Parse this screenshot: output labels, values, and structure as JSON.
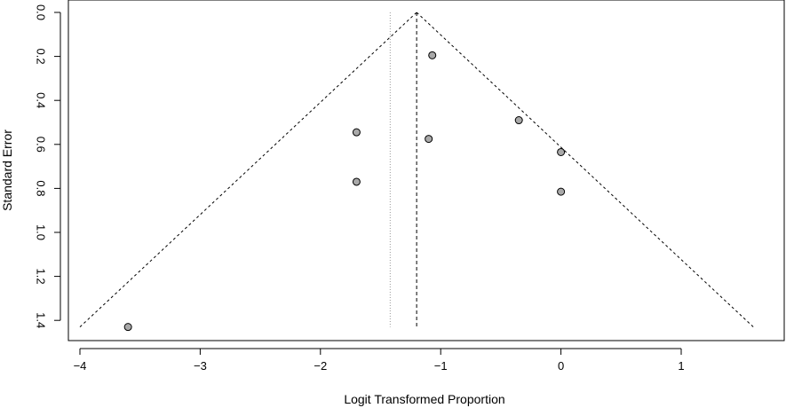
{
  "chart_data": {
    "type": "scatter",
    "subtype": "funnel-plot",
    "title": "",
    "xlabel": "Logit Transformed Proportion",
    "ylabel": "Standard Error",
    "xlim": [
      -4.1,
      1.8
    ],
    "ylim": [
      0.0,
      1.44
    ],
    "y_reversed": true,
    "x_ticks": [
      -4,
      -3,
      -2,
      -1,
      0,
      1
    ],
    "x_tick_labels": [
      "−4",
      "−3",
      "−2",
      "−1",
      "0",
      "1"
    ],
    "y_ticks": [
      0.0,
      0.2,
      0.4,
      0.6,
      0.8,
      1.0,
      1.2,
      1.4
    ],
    "y_tick_labels": [
      "0.0",
      "0.2",
      "0.4",
      "0.6",
      "0.8",
      "1.0",
      "1.2",
      "1.4"
    ],
    "grid": false,
    "legend": "none",
    "points": [
      {
        "x": -1.07,
        "y": 0.195
      },
      {
        "x": -0.35,
        "y": 0.49
      },
      {
        "x": -1.7,
        "y": 0.545
      },
      {
        "x": -1.1,
        "y": 0.575
      },
      {
        "x": 0.0,
        "y": 0.635
      },
      {
        "x": -1.7,
        "y": 0.77
      },
      {
        "x": 0.0,
        "y": 0.815
      },
      {
        "x": -3.6,
        "y": 1.43
      }
    ],
    "funnel": {
      "apex_x": -1.2,
      "apex_y": 0.0,
      "bottom_y": 1.43,
      "left_x": -4.0,
      "right_x": 1.6
    },
    "reference_lines": {
      "pooled_estimate_x": -1.2,
      "dotted_line_x": -1.42
    },
    "colors": {
      "point_fill": "#a9a9a9",
      "point_stroke": "#000000",
      "line": "#000000",
      "dotted": "#999999"
    }
  }
}
